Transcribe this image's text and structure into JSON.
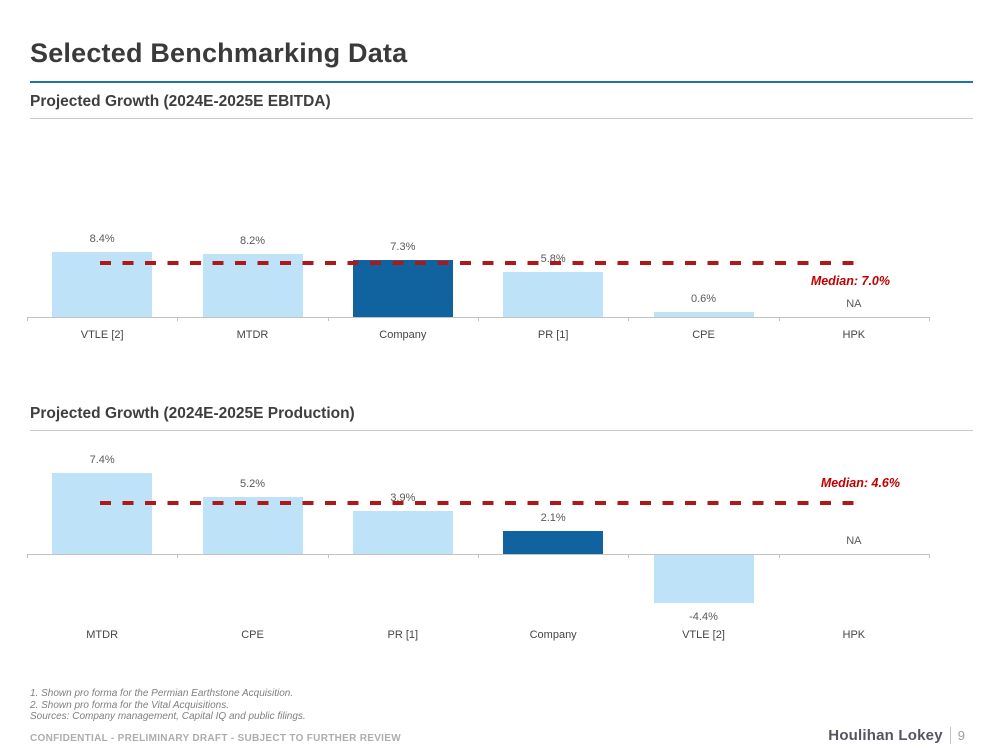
{
  "slide": {
    "title": "Selected Benchmarking Data",
    "confidential_text": "CONFIDENTIAL - PRELIMINARY DRAFT - SUBJECT TO FURTHER REVIEW",
    "brand": "Houlihan Lokey",
    "page_number": "9",
    "footnotes": [
      "1. Shown pro forma for the Permian Earthstone Acquisition.",
      "2. Shown pro forma for the Vital Acquisitions.",
      "Sources: Company management, Capital IQ and public filings."
    ]
  },
  "colors": {
    "bar_light": "#bee3f8",
    "bar_dark": "#11639f",
    "median_line": "#b01818",
    "median_text": "#c00000",
    "title_rule": "#1b76a9",
    "axis": "#c2c2c2"
  },
  "chart_data": [
    {
      "type": "bar",
      "title": "Projected Growth (2024E-2025E EBITDA)",
      "categories": [
        "VTLE [2]",
        "MTDR",
        "Company",
        "PR [1]",
        "CPE",
        "HPK"
      ],
      "values": [
        8.4,
        8.2,
        7.3,
        5.8,
        0.6,
        null
      ],
      "value_labels": [
        "8.4%",
        "8.2%",
        "7.3%",
        "5.8%",
        "0.6%",
        "NA"
      ],
      "bar_styles": [
        "light",
        "light",
        "dark",
        "light",
        "light",
        "none"
      ],
      "median": 7.0,
      "median_label": "Median: 7.0%",
      "value_suffix": "%",
      "grid": false,
      "legend": false,
      "highlighted_category": "Company"
    },
    {
      "type": "bar",
      "title": "Projected Growth (2024E-2025E Production)",
      "categories": [
        "MTDR",
        "CPE",
        "PR [1]",
        "Company",
        "VTLE [2]",
        "HPK"
      ],
      "values": [
        7.4,
        5.2,
        3.9,
        2.1,
        -4.4,
        null
      ],
      "value_labels": [
        "7.4%",
        "5.2%",
        "3.9%",
        "2.1%",
        "-4.4%",
        "NA"
      ],
      "bar_styles": [
        "light",
        "light",
        "light",
        "dark",
        "light",
        "none"
      ],
      "median": 4.6,
      "median_label": "Median: 4.6%",
      "value_suffix": "%",
      "grid": false,
      "legend": false,
      "highlighted_category": "Company"
    }
  ]
}
